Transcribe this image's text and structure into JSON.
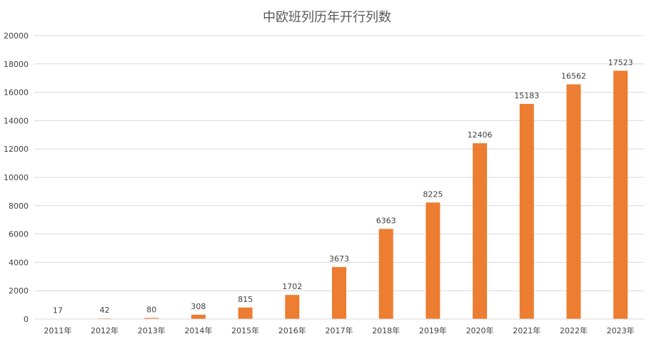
{
  "chart_data": {
    "type": "bar",
    "title": "中欧班列历年开行列数",
    "categories": [
      "2011年",
      "2012年",
      "2013年",
      "2014年",
      "2015年",
      "2016年",
      "2017年",
      "2018年",
      "2019年",
      "2020年",
      "2021年",
      "2022年",
      "2023年"
    ],
    "series": [
      {
        "values": [
          17,
          42,
          80,
          308,
          815,
          1702,
          3673,
          6363,
          8225,
          12406,
          15183,
          16562,
          17523
        ]
      }
    ],
    "y_ticks": [
      0,
      2000,
      4000,
      6000,
      8000,
      10000,
      12000,
      14000,
      16000,
      18000,
      20000
    ],
    "ylim": [
      0,
      20000
    ],
    "grid": true,
    "bar_color": "#ED7D31",
    "grid_color": "#D9D9D9"
  }
}
